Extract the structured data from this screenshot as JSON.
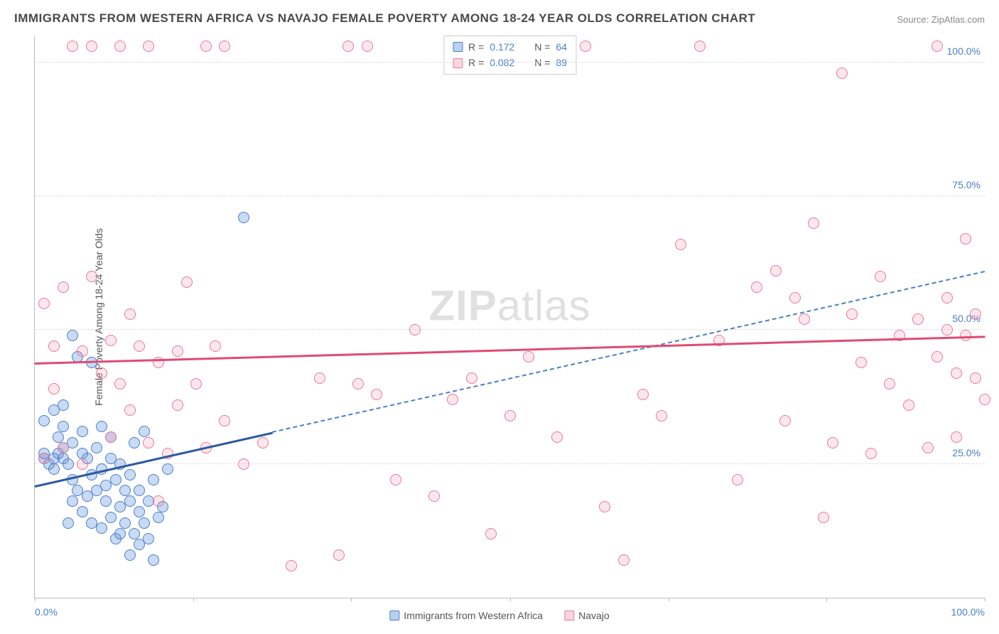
{
  "title": "IMMIGRANTS FROM WESTERN AFRICA VS NAVAJO FEMALE POVERTY AMONG 18-24 YEAR OLDS CORRELATION CHART",
  "source": "Source: ZipAtlas.com",
  "watermark_a": "ZIP",
  "watermark_b": "atlas",
  "ylabel": "Female Poverty Among 18-24 Year Olds",
  "chart": {
    "type": "scatter",
    "xlim": [
      0,
      100
    ],
    "ylim": [
      0,
      105
    ],
    "xtick_positions": [
      0,
      16.7,
      33.3,
      50,
      66.7,
      83.3,
      100
    ],
    "xtick_labels": [
      "0.0%",
      "",
      "",
      "",
      "",
      "",
      "100.0%"
    ],
    "ytick_positions": [
      25,
      50,
      75,
      100
    ],
    "ytick_labels": [
      "25.0%",
      "50.0%",
      "75.0%",
      "100.0%"
    ],
    "grid_color": "#dddddd",
    "background_color": "#ffffff",
    "axis_color": "#bbbbbb",
    "tick_label_color": "#4a7fc9",
    "marker_radius": 8,
    "series": [
      {
        "name": "Immigrants from Western Africa",
        "color_fill": "rgba(100,150,220,0.35)",
        "color_stroke": "#4a7fc9",
        "class": "point-blue",
        "R": "0.172",
        "N": "64",
        "trend_solid": {
          "x1": 0,
          "y1": 21,
          "x2": 25,
          "y2": 31,
          "color": "#2c5aa0"
        },
        "trend_dash": {
          "x1": 25,
          "y1": 31,
          "x2": 100,
          "y2": 61,
          "color": "#4a7fc9"
        },
        "points": [
          [
            1,
            26
          ],
          [
            1,
            27
          ],
          [
            1.5,
            25
          ],
          [
            2,
            26
          ],
          [
            2,
            35
          ],
          [
            2,
            24
          ],
          [
            2.5,
            27
          ],
          [
            2.5,
            30
          ],
          [
            3,
            26
          ],
          [
            3,
            28
          ],
          [
            3,
            32
          ],
          [
            3.5,
            25
          ],
          [
            3.5,
            14
          ],
          [
            4,
            22
          ],
          [
            4,
            29
          ],
          [
            4,
            18
          ],
          [
            4.5,
            45
          ],
          [
            4.5,
            20
          ],
          [
            5,
            27
          ],
          [
            5,
            31
          ],
          [
            5,
            16
          ],
          [
            5.5,
            19
          ],
          [
            5.5,
            26
          ],
          [
            6,
            23
          ],
          [
            6,
            14
          ],
          [
            6.5,
            20
          ],
          [
            6.5,
            28
          ],
          [
            7,
            32
          ],
          [
            7,
            24
          ],
          [
            7,
            13
          ],
          [
            7.5,
            18
          ],
          [
            7.5,
            21
          ],
          [
            8,
            26
          ],
          [
            8,
            30
          ],
          [
            8,
            15
          ],
          [
            8.5,
            11
          ],
          [
            8.5,
            22
          ],
          [
            9,
            17
          ],
          [
            9,
            25
          ],
          [
            9,
            12
          ],
          [
            9.5,
            20
          ],
          [
            9.5,
            14
          ],
          [
            10,
            23
          ],
          [
            10,
            18
          ],
          [
            10,
            8
          ],
          [
            10.5,
            12
          ],
          [
            10.5,
            29
          ],
          [
            11,
            20
          ],
          [
            11,
            16
          ],
          [
            11,
            10
          ],
          [
            11.5,
            31
          ],
          [
            11.5,
            14
          ],
          [
            12,
            18
          ],
          [
            12,
            11
          ],
          [
            12.5,
            22
          ],
          [
            12.5,
            7
          ],
          [
            13,
            15
          ],
          [
            13.5,
            17
          ],
          [
            14,
            24
          ],
          [
            4,
            49
          ],
          [
            6,
            44
          ],
          [
            22,
            71
          ],
          [
            1,
            33
          ],
          [
            3,
            36
          ]
        ]
      },
      {
        "name": "Navajo",
        "color_fill": "rgba(240,120,150,0.18)",
        "color_stroke": "#e77a97",
        "class": "point-pink",
        "R": "0.082",
        "N": "89",
        "trend_solid": {
          "x1": 0,
          "y1": 44,
          "x2": 100,
          "y2": 49,
          "color": "#e04b72"
        },
        "trend_dash": null,
        "points": [
          [
            1,
            26
          ],
          [
            1,
            55
          ],
          [
            2,
            39
          ],
          [
            2,
            47
          ],
          [
            3,
            28
          ],
          [
            3,
            58
          ],
          [
            4,
            103
          ],
          [
            5,
            46
          ],
          [
            5,
            25
          ],
          [
            6,
            60
          ],
          [
            6,
            103
          ],
          [
            7,
            42
          ],
          [
            8,
            48
          ],
          [
            8,
            30
          ],
          [
            9,
            103
          ],
          [
            9,
            40
          ],
          [
            10,
            53
          ],
          [
            10,
            35
          ],
          [
            11,
            47
          ],
          [
            12,
            103
          ],
          [
            12,
            29
          ],
          [
            13,
            44
          ],
          [
            13,
            18
          ],
          [
            14,
            27
          ],
          [
            15,
            36
          ],
          [
            15,
            46
          ],
          [
            16,
            59
          ],
          [
            17,
            40
          ],
          [
            18,
            103
          ],
          [
            18,
            28
          ],
          [
            19,
            47
          ],
          [
            20,
            103
          ],
          [
            20,
            33
          ],
          [
            22,
            25
          ],
          [
            24,
            29
          ],
          [
            27,
            6
          ],
          [
            30,
            41
          ],
          [
            32,
            8
          ],
          [
            33,
            103
          ],
          [
            34,
            40
          ],
          [
            35,
            103
          ],
          [
            36,
            38
          ],
          [
            38,
            22
          ],
          [
            40,
            50
          ],
          [
            42,
            19
          ],
          [
            44,
            37
          ],
          [
            46,
            41
          ],
          [
            48,
            12
          ],
          [
            50,
            34
          ],
          [
            52,
            45
          ],
          [
            55,
            30
          ],
          [
            58,
            103
          ],
          [
            60,
            17
          ],
          [
            62,
            7
          ],
          [
            64,
            38
          ],
          [
            66,
            34
          ],
          [
            68,
            66
          ],
          [
            70,
            103
          ],
          [
            72,
            48
          ],
          [
            74,
            22
          ],
          [
            76,
            58
          ],
          [
            78,
            61
          ],
          [
            79,
            33
          ],
          [
            80,
            56
          ],
          [
            81,
            52
          ],
          [
            82,
            70
          ],
          [
            83,
            15
          ],
          [
            84,
            29
          ],
          [
            85,
            98
          ],
          [
            86,
            53
          ],
          [
            87,
            44
          ],
          [
            88,
            27
          ],
          [
            89,
            60
          ],
          [
            90,
            40
          ],
          [
            91,
            49
          ],
          [
            92,
            36
          ],
          [
            93,
            52
          ],
          [
            94,
            28
          ],
          [
            95,
            103
          ],
          [
            95,
            45
          ],
          [
            96,
            56
          ],
          [
            96,
            50
          ],
          [
            97,
            42
          ],
          [
            97,
            30
          ],
          [
            98,
            67
          ],
          [
            98,
            49
          ],
          [
            99,
            41
          ],
          [
            99,
            53
          ],
          [
            100,
            37
          ]
        ]
      }
    ]
  },
  "legend_bottom": [
    {
      "swatch": "sw-blue",
      "label": "Immigrants from Western Africa"
    },
    {
      "swatch": "sw-pink",
      "label": "Navajo"
    }
  ],
  "legend_top_rows": [
    {
      "swatch": "sw-blue",
      "r_lbl": "R =",
      "r_val": "0.172",
      "n_lbl": "N =",
      "n_val": "64"
    },
    {
      "swatch": "sw-pink",
      "r_lbl": "R =",
      "r_val": "0.082",
      "n_lbl": "N =",
      "n_val": "89"
    }
  ]
}
